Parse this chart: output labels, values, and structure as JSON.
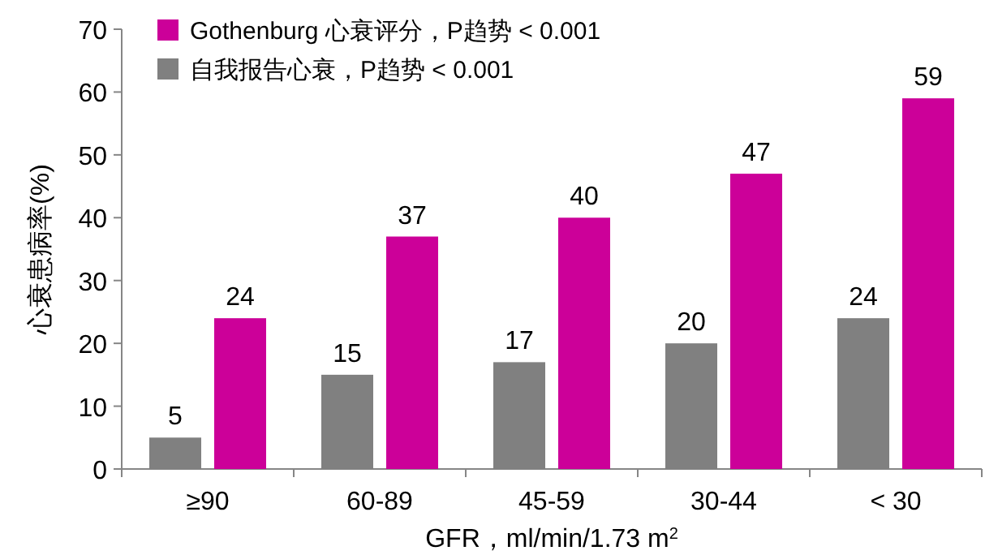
{
  "chart_data": {
    "type": "bar",
    "xlabel": "GFR，ml/min/1.73 m$^{2}$",
    "ylabel": "心衰患病率(%)",
    "categories": [
      "≥90",
      "60-89",
      "45-59",
      "30-44",
      "< 30"
    ],
    "series": [
      {
        "name": "自我报告心衰，P趋势 < 0.001",
        "color": "#808080",
        "values": [
          5,
          15,
          17,
          20,
          24
        ]
      },
      {
        "name": "Gothenburg 心衰评分，P趋势 < 0.001",
        "color": "#cc0099",
        "values": [
          24,
          37,
          40,
          47,
          59
        ]
      }
    ],
    "ylim": [
      0,
      70
    ],
    "yticks": [
      0,
      10,
      20,
      30,
      40,
      50,
      60,
      70
    ],
    "data_labels": true,
    "legend": "top left",
    "grid": false
  }
}
